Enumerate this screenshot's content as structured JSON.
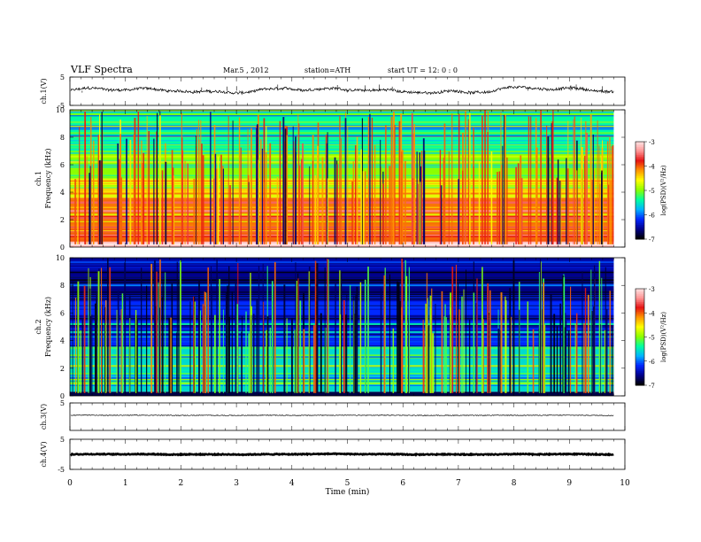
{
  "header": {
    "title": "VLF  Spectra",
    "date": "Mar.5  , 2012",
    "station": "station=ATH",
    "start": "start  UT  =    12: 0  : 0"
  },
  "chart_data": [
    {
      "type": "line",
      "panel": "ch1-waveform",
      "ylabel": "ch.1(V)",
      "ylim": [
        -5,
        5
      ],
      "y_ticks": [
        "5",
        "-5"
      ],
      "x_range_min": [
        0,
        9.8
      ],
      "description_values": {
        "baseline_V": 0.2,
        "amplitude_V": 1.2
      }
    },
    {
      "type": "heatmap",
      "panel": "ch1-spectrogram",
      "ylabel": "ch.1\nFrequency  (kHz)",
      "ylim": [
        0,
        10
      ],
      "y_ticks": [
        "0",
        "2",
        "4",
        "6",
        "8",
        "10"
      ],
      "x_range_min": [
        0,
        9.8
      ],
      "colorbar": {
        "label": "log(PSD)(V²/Hz)",
        "ticks": [
          "-3",
          "-4",
          "-5",
          "-6",
          "-7"
        ],
        "range": [
          -7,
          -3
        ]
      },
      "bands_khz": [
        {
          "from": 0.0,
          "to": 0.4,
          "level": -3.2
        },
        {
          "from": 0.4,
          "to": 1.0,
          "level": -4.0
        },
        {
          "from": 1.0,
          "to": 3.6,
          "level": -4.1
        },
        {
          "from": 3.6,
          "to": 5.0,
          "level": -4.7
        },
        {
          "from": 5.0,
          "to": 7.0,
          "level": -5.0
        },
        {
          "from": 7.0,
          "to": 10.0,
          "level": -5.4
        }
      ]
    },
    {
      "type": "heatmap",
      "panel": "ch2-spectrogram",
      "ylabel": "ch.2\nFrequency  (kHz)",
      "ylim": [
        0,
        10
      ],
      "y_ticks": [
        "0",
        "2",
        "4",
        "6",
        "8",
        "10"
      ],
      "x_range_min": [
        0,
        9.8
      ],
      "colorbar": {
        "label": "log(PSD)(V²/Hz)",
        "ticks": [
          "-3",
          "-4",
          "-5",
          "-6",
          "-7"
        ],
        "range": [
          -7,
          -3
        ]
      },
      "bands_khz": [
        {
          "from": 0.0,
          "to": 0.3,
          "level": -6.8
        },
        {
          "from": 0.3,
          "to": 3.6,
          "level": -5.6
        },
        {
          "from": 3.6,
          "to": 7.0,
          "level": -6.2
        },
        {
          "from": 7.0,
          "to": 10.0,
          "level": -6.6
        }
      ]
    },
    {
      "type": "line",
      "panel": "ch3-waveform",
      "ylabel": "ch.3(V)",
      "ylim": [
        -5,
        5
      ],
      "y_ticks": [
        "5"
      ],
      "description_values": {
        "baseline_V": 0.5,
        "amplitude_V": 0.05
      }
    },
    {
      "type": "line",
      "panel": "ch4-waveform",
      "ylabel": "ch.4(V)",
      "ylim": [
        -5,
        5
      ],
      "y_ticks": [
        "5",
        "-5"
      ],
      "description_values": {
        "baseline_V": 0.0,
        "amplitude_V": 0.15
      }
    }
  ],
  "x_axis": {
    "label": "Time  (min)",
    "ticks": [
      "0",
      "1",
      "2",
      "3",
      "4",
      "5",
      "6",
      "7",
      "8",
      "9",
      "10"
    ],
    "xlim": [
      0,
      10
    ]
  }
}
